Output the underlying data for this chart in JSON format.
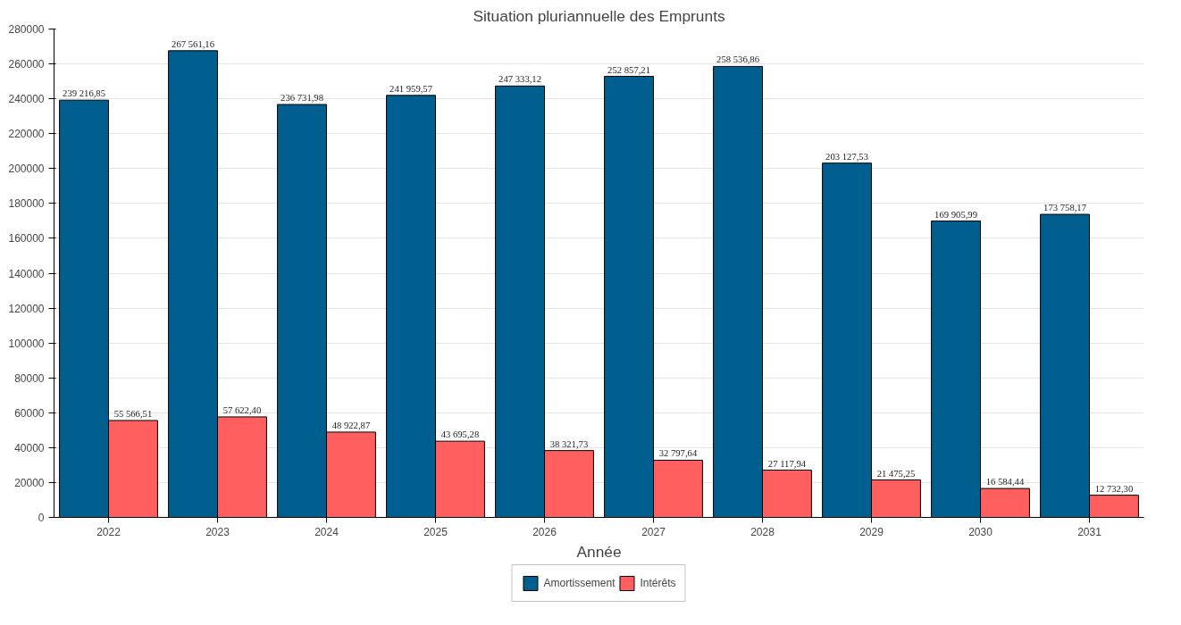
{
  "chart_data": {
    "type": "bar",
    "title": "Situation pluriannuelle des Emprunts",
    "xlabel": "Année",
    "categories": [
      "2022",
      "2023",
      "2024",
      "2025",
      "2026",
      "2027",
      "2028",
      "2029",
      "2030",
      "2031"
    ],
    "series": [
      {
        "name": "Amortissement",
        "color": "#005f8f",
        "values": [
          239216.85,
          267561.16,
          236731.98,
          241959.57,
          247333.12,
          252857.21,
          258536.86,
          203127.53,
          169905.99,
          173758.17
        ],
        "value_labels": [
          "239 216,85",
          "267 561,16",
          "236 731,98",
          "241 959,57",
          "247 333,12",
          "252 857,21",
          "258 536,86",
          "203 127,53",
          "169 905,99",
          "173 758,17"
        ]
      },
      {
        "name": "Intérêts",
        "color": "#ff5f5f",
        "values": [
          55566.51,
          57622.4,
          48922.87,
          43695.28,
          38321.73,
          32797.64,
          27117.94,
          21475.25,
          16584.44,
          12732.3
        ],
        "value_labels": [
          "55 566,51",
          "57 622,40",
          "48 922,87",
          "43 695,28",
          "38 321,73",
          "32 797,64",
          "27 117,94",
          "21 475,25",
          "16 584,44",
          "12 732,30"
        ]
      }
    ],
    "ylim": [
      0,
      280000
    ],
    "yticks": [
      0,
      20000,
      40000,
      60000,
      80000,
      100000,
      120000,
      140000,
      160000,
      180000,
      200000,
      220000,
      240000,
      260000,
      280000
    ],
    "grid": "y",
    "legend": "bottom"
  }
}
